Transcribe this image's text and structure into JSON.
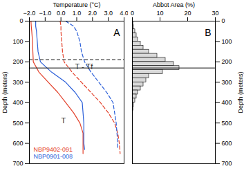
{
  "chart_data": [
    {
      "type": "line",
      "panel_label": "A",
      "xlabel": "Temperature (°C)",
      "ylabel": "Depth (meters)",
      "xlim": [
        -2,
        4
      ],
      "xticks": [
        {
          "value": -2,
          "label": "−2.0"
        },
        {
          "value": -1,
          "label": "−1.0"
        },
        {
          "value": 0,
          "label": "0.0"
        },
        {
          "value": 1,
          "label": "1.0"
        },
        {
          "value": 2,
          "label": "2.0"
        },
        {
          "value": 3,
          "label": "3.0"
        },
        {
          "value": 4,
          "label": "4.0"
        }
      ],
      "ylim": [
        0,
        700
      ],
      "yticks": [
        0,
        100,
        200,
        300,
        400,
        500,
        600,
        700
      ],
      "hlines": [
        {
          "value": 190,
          "line_style": "dashed"
        },
        {
          "value": 230,
          "line_style": "solid"
        }
      ],
      "series": [
        {
          "name": "NBP9402-091",
          "color": "#e3412b",
          "profiles": [
            {
              "name": "T",
              "line_style": "solid",
              "depth": [
                0,
                25,
                50,
                100,
                150,
                200,
                250,
                300,
                350,
                400,
                450,
                500,
                550,
                600,
                650
              ],
              "values": [
                -1.9,
                -1.88,
                -1.85,
                -1.8,
                -1.78,
                -1.75,
                -1.4,
                -0.8,
                -0.2,
                0.3,
                0.8,
                1.2,
                1.4,
                1.4,
                1.4
              ]
            },
            {
              "name": "T - Tf",
              "line_style": "dashed",
              "depth": [
                0,
                25,
                50,
                100,
                150,
                200,
                250,
                300,
                350,
                400,
                450,
                500,
                550,
                600,
                650
              ],
              "values": [
                -0.05,
                0.0,
                0.0,
                0.05,
                0.1,
                0.2,
                0.7,
                1.3,
                1.9,
                2.5,
                3.0,
                3.4,
                3.6,
                3.7,
                3.75
              ]
            }
          ]
        },
        {
          "name": "NBP0901-008",
          "color": "#2b5fd9",
          "profiles": [
            {
              "name": "T",
              "line_style": "solid",
              "depth": [
                0,
                25,
                50,
                100,
                150,
                200,
                250,
                300,
                350,
                400,
                450,
                500,
                550,
                600,
                630
              ],
              "values": [
                -1.6,
                -1.6,
                -1.55,
                -1.5,
                -1.45,
                -1.3,
                -0.6,
                0.3,
                0.9,
                1.35,
                1.4,
                1.45,
                1.45,
                1.45,
                1.5
              ]
            },
            {
              "name": "T - Tf",
              "line_style": "dashed",
              "depth": [
                0,
                25,
                50,
                100,
                150,
                200,
                250,
                300,
                350,
                400,
                450,
                500,
                550,
                600,
                630
              ],
              "values": [
                0.3,
                0.8,
                1.0,
                1.2,
                1.3,
                1.5,
                1.9,
                2.4,
                2.9,
                3.3,
                3.4,
                3.5,
                3.55,
                3.6,
                3.6
              ]
            }
          ]
        }
      ]
    },
    {
      "type": "bar",
      "orientation": "horizontal",
      "panel_label": "B",
      "xlabel": "Abbot Area (%)",
      "ylabel": "Depth (meters)",
      "xlim": [
        0,
        30
      ],
      "xticks": [
        0,
        10,
        20,
        30
      ],
      "ylim": [
        0,
        700
      ],
      "yticks": [
        0,
        100,
        200,
        300,
        400,
        500,
        600,
        700
      ],
      "color": "#d9d9d9",
      "hlines": [
        {
          "value": 230,
          "line_style": "solid"
        }
      ],
      "bins": [
        0,
        20,
        40,
        60,
        80,
        100,
        120,
        140,
        160,
        180,
        200,
        220,
        240,
        260,
        280,
        300,
        320,
        340,
        360,
        380,
        400,
        420,
        440
      ],
      "values": [
        0.3,
        0.5,
        1,
        1.5,
        2,
        3,
        4,
        6,
        9,
        12,
        15,
        17,
        11,
        6,
        5,
        4,
        3,
        2,
        1.5,
        1,
        0.5,
        0.3
      ]
    }
  ]
}
